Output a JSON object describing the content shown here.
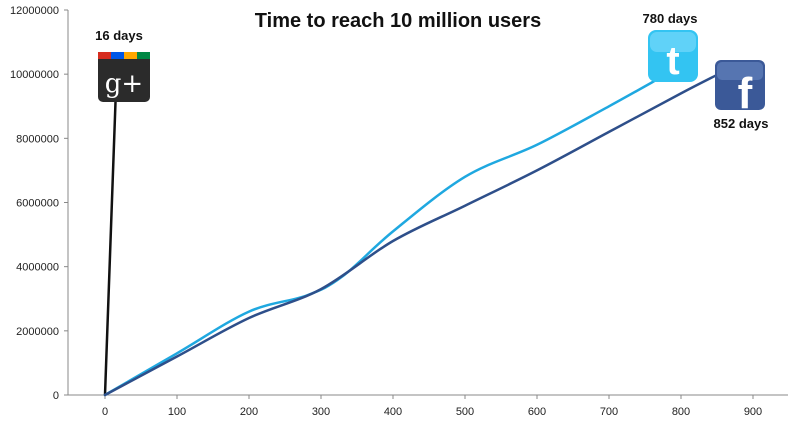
{
  "chart_data": {
    "type": "line",
    "title": "Time to reach 10 million users",
    "xlabel": "",
    "ylabel": "",
    "xlim": [
      0,
      900
    ],
    "ylim": [
      0,
      12000000
    ],
    "x_ticks": [
      0,
      100,
      200,
      300,
      400,
      500,
      600,
      700,
      800,
      900
    ],
    "y_ticks": [
      0,
      2000000,
      4000000,
      6000000,
      8000000,
      10000000,
      12000000
    ],
    "x_tick_labels": [
      "0",
      "100",
      "200",
      "300",
      "400",
      "500",
      "600",
      "700",
      "800",
      "900"
    ],
    "y_tick_labels": [
      "0",
      "2000000",
      "4000000",
      "6000000",
      "8000000",
      "10000000",
      "12000000"
    ],
    "grid": false,
    "series": [
      {
        "name": "Google+",
        "color": "#111111",
        "icon": "google-plus-icon",
        "icon_text": "g+",
        "annotation": "16 days",
        "x": [
          0,
          16
        ],
        "y": [
          0,
          10000000
        ]
      },
      {
        "name": "Twitter",
        "color": "#1fa8e0",
        "icon": "twitter-icon",
        "icon_text": "t",
        "annotation": "780 days",
        "x": [
          0,
          100,
          200,
          280,
          330,
          400,
          500,
          600,
          700,
          780
        ],
        "y": [
          0,
          1300000,
          2600000,
          3100000,
          3700000,
          5100000,
          6800000,
          7800000,
          9000000,
          10000000
        ]
      },
      {
        "name": "Facebook",
        "color": "#2e4f8a",
        "icon": "facebook-icon",
        "icon_text": "f",
        "annotation": "852 days",
        "x": [
          0,
          100,
          200,
          300,
          400,
          500,
          600,
          700,
          800,
          852
        ],
        "y": [
          0,
          1200000,
          2400000,
          3300000,
          4800000,
          5900000,
          7000000,
          8200000,
          9400000,
          10000000
        ]
      }
    ]
  }
}
